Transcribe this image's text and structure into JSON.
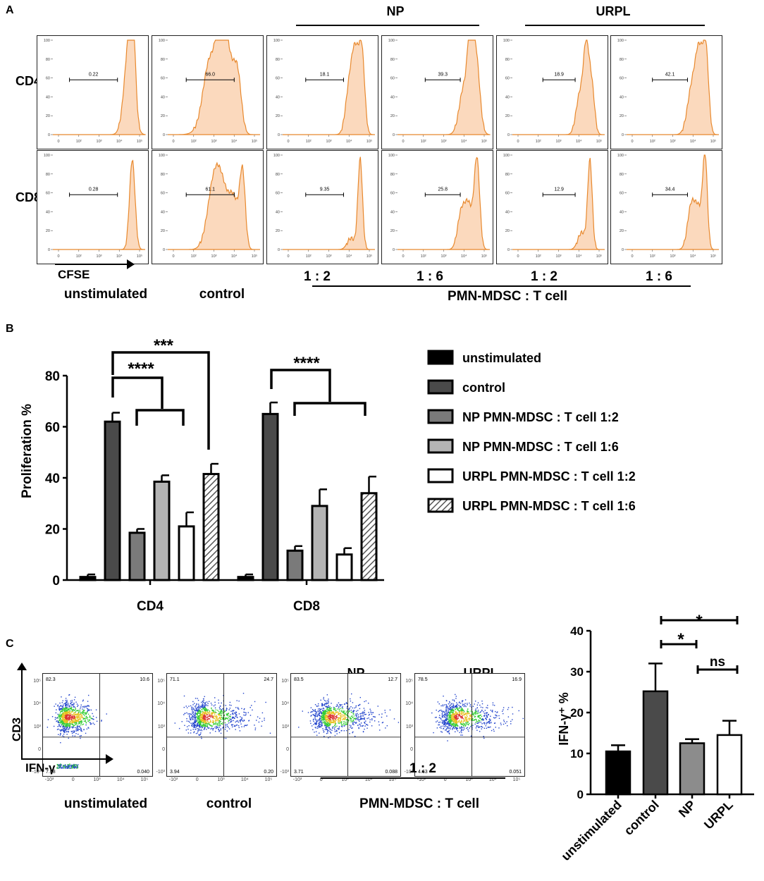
{
  "panel_letters": {
    "a": "A",
    "b": "B",
    "c": "C"
  },
  "panelA": {
    "groups": {
      "np": "NP",
      "urpl": "URPL"
    },
    "rows": {
      "cd4": "CD4",
      "cd8": "CD8"
    },
    "axis_label": "CFSE",
    "ratios": [
      "1 : 2",
      "1 : 6",
      "1 : 2",
      "1 : 6"
    ],
    "ratio_caption": "PMN-MDSC : T cell",
    "columns": [
      "unstimulated",
      "control"
    ],
    "y_ticks": [
      "0",
      "20",
      "40",
      "60",
      "80",
      "100"
    ],
    "x_ticks": [
      "0",
      "10²",
      "10³",
      "10⁴",
      "10⁵"
    ],
    "cd4_values": [
      "0.22",
      "66.0",
      "18.1",
      "39.3",
      "18.9",
      "42.1"
    ],
    "cd8_values": [
      "0.28",
      "61.1",
      "9.35",
      "25.8",
      "12.9",
      "34.4"
    ]
  },
  "chart_data": [
    {
      "type": "bar",
      "title": "",
      "ylabel": "Proliferation %",
      "xlabel": "",
      "ylim": [
        0,
        80
      ],
      "yticks": [
        0,
        20,
        40,
        60,
        80
      ],
      "categories": [
        "CD4",
        "CD8"
      ],
      "series": [
        {
          "name": "unstimulated",
          "values": [
            1.2,
            1.2
          ],
          "errors": [
            1.0,
            1.0
          ],
          "color": "#000000"
        },
        {
          "name": "control",
          "values": [
            62,
            65
          ],
          "errors": [
            3.5,
            4.5
          ],
          "color": "#4a4a4a"
        },
        {
          "name": "NP PMN-MDSC : T cell 1:2",
          "values": [
            18.5,
            11.5
          ],
          "errors": [
            1.5,
            1.8
          ],
          "color": "#7a7a7a"
        },
        {
          "name": "NP PMN-MDSC : T cell 1:6",
          "values": [
            38.5,
            29
          ],
          "errors": [
            2.5,
            6.5
          ],
          "color": "#b4b4b4"
        },
        {
          "name": "URPL PMN-MDSC : T cell 1:2",
          "values": [
            21,
            10
          ],
          "errors": [
            5.5,
            2.5
          ],
          "color": "#ffffff"
        },
        {
          "name": "URPL PMN-MDSC : T cell 1:6",
          "values": [
            41.5,
            34
          ],
          "errors": [
            4,
            6.5
          ],
          "color": "hatch"
        }
      ],
      "annotations": [
        "***",
        "****",
        "****"
      ]
    },
    {
      "type": "bar",
      "title": "",
      "ylabel": "IFN-γ⁺ %",
      "xlabel": "",
      "ylim": [
        0,
        40
      ],
      "yticks": [
        0,
        10,
        20,
        30,
        40
      ],
      "categories": [
        "unstimulated",
        "control",
        "NP",
        "URPL"
      ],
      "values": [
        10.5,
        25.2,
        12.5,
        14.5
      ],
      "errors": [
        1.5,
        6.8,
        1.0,
        3.5
      ],
      "colors": [
        "#000000",
        "#4a4a4a",
        "#8c8c8c",
        "#ffffff"
      ],
      "annotations": [
        "*",
        "*",
        "ns"
      ]
    }
  ],
  "panelC": {
    "groups": {
      "np": "NP",
      "urpl": "URPL"
    },
    "y_axis": "CD3",
    "x_axis": "IFN-γ",
    "columns": [
      "unstimulated",
      "control"
    ],
    "ratio": "1 : 2",
    "ratio_caption": "PMN-MDSC : T cell",
    "y_ticks": [
      "-10³",
      "0",
      "10³",
      "10⁴",
      "10⁵"
    ],
    "x_ticks": [
      "-10³",
      "0",
      "10³",
      "10⁴",
      "10⁵"
    ],
    "quadrants": [
      {
        "ul": "82.3",
        "ur": "10.6",
        "ll": "7.08",
        "lr": "0.040"
      },
      {
        "ul": "71.1",
        "ur": "24.7",
        "ll": "3.94",
        "lr": "0.20"
      },
      {
        "ul": "83.5",
        "ur": "12.7",
        "ll": "3.71",
        "lr": "0.088"
      },
      {
        "ul": "78.5",
        "ur": "16.9",
        "ll": "4.63",
        "lr": "0.051"
      }
    ]
  }
}
